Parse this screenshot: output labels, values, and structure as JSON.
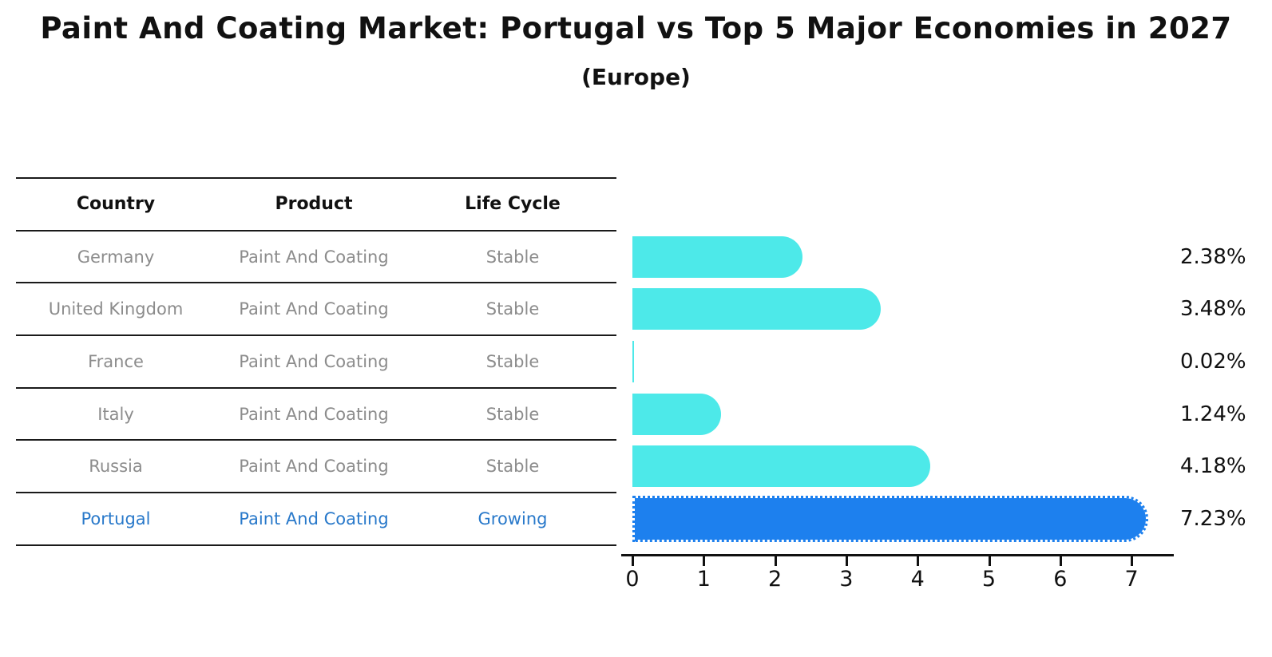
{
  "title": "Paint And Coating Market: Portugal vs Top 5 Major Economies in 2027",
  "subtitle": "(Europe)",
  "table": {
    "headers": [
      "Country",
      "Product",
      "Life Cycle"
    ],
    "rows": [
      {
        "country": "Germany",
        "product": "Paint And Coating",
        "life_cycle": "Stable",
        "highlight": false
      },
      {
        "country": "United Kingdom",
        "product": "Paint And Coating",
        "life_cycle": "Stable",
        "highlight": false
      },
      {
        "country": "France",
        "product": "Paint And Coating",
        "life_cycle": "Stable",
        "highlight": false
      },
      {
        "country": "Italy",
        "product": "Paint And Coating",
        "life_cycle": "Stable",
        "highlight": false
      },
      {
        "country": "Russia",
        "product": "Paint And Coating",
        "life_cycle": "Stable",
        "highlight": false
      },
      {
        "country": "Portugal",
        "product": "Paint And Coating",
        "life_cycle": "Growing",
        "highlight": true
      }
    ]
  },
  "chart_data": {
    "type": "bar",
    "orientation": "horizontal",
    "categories": [
      "Germany",
      "United Kingdom",
      "France",
      "Italy",
      "Russia",
      "Portugal"
    ],
    "values": [
      2.38,
      3.48,
      0.02,
      1.24,
      4.18,
      7.23
    ],
    "value_labels": [
      "2.38%",
      "3.48%",
      "0.02%",
      "1.24%",
      "4.18%",
      "7.23%"
    ],
    "highlight_index": 5,
    "xlim": [
      0,
      7.6
    ],
    "x_ticks": [
      "0",
      "1",
      "2",
      "3",
      "4",
      "5",
      "6",
      "7"
    ],
    "grid": false,
    "legend": false,
    "title": "Paint And Coating Market: Portugal vs Top 5 Major Economies in 2027 (Europe)"
  },
  "colors": {
    "bar_default": "#4de9e9",
    "bar_highlight": "#1d80ee",
    "text_default": "#111111",
    "row_text": "#8c8c8c",
    "highlight_text": "#2979ca"
  }
}
